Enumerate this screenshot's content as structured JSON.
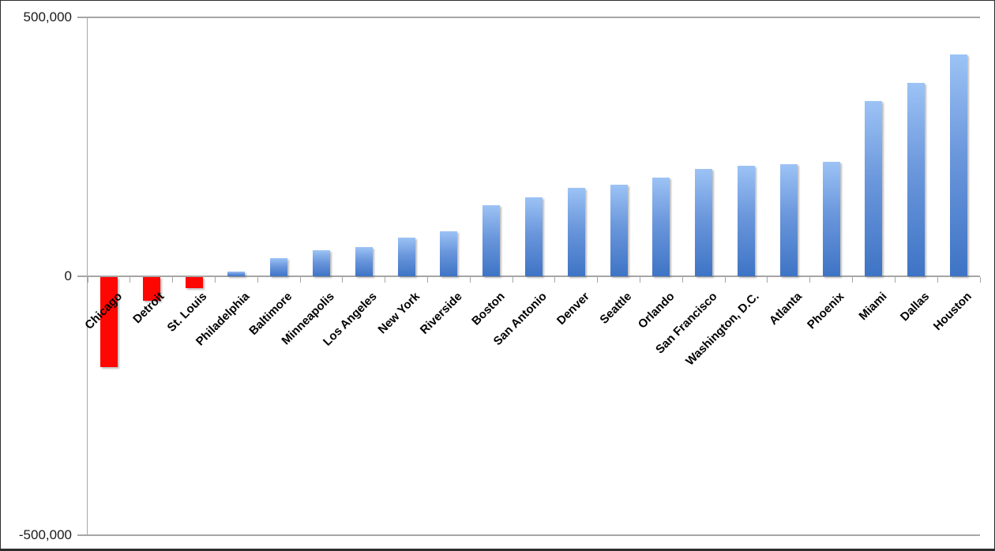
{
  "chart_data": {
    "type": "bar",
    "title": "",
    "xlabel": "",
    "ylabel": "",
    "ylim": [
      -500000,
      500000
    ],
    "y_major_unit": 500000,
    "legend": "none",
    "gridlines": "horizontal at -500,000, 0 and 500,000 only",
    "categories": [
      "Chicago",
      "Detroit",
      "St. Louis",
      "Philadelphia",
      "Baltimore",
      "Minneapolis",
      "Los Angeles",
      "New York",
      "Riverside",
      "Boston",
      "San Antonio",
      "Denver",
      "Seattle",
      "Orlando",
      "San Francisco",
      "Washington, D.C.",
      "Atlanta",
      "Phoenix",
      "Miami",
      "Dallas",
      "Houston"
    ],
    "values": [
      -174000,
      -46000,
      -22000,
      9000,
      35000,
      51000,
      56000,
      74000,
      87000,
      137000,
      152000,
      170000,
      177000,
      190000,
      208000,
      213000,
      216000,
      221000,
      338000,
      373000,
      429000
    ],
    "y_ticks": [
      {
        "label": "500,000",
        "value": 500000
      },
      {
        "label": "0",
        "value": 0
      },
      {
        "label": "-500,000",
        "value": -500000
      }
    ],
    "colors": {
      "positive_bar_top": "#9CC3F5",
      "positive_bar_mid": "#6B97DC",
      "positive_bar_bottom": "#3E74C5",
      "negative_bar": "#FE0602",
      "axis_line": "#A6A6A6",
      "category_label_text": "#000000",
      "tick_label_text": "#1A1A1A",
      "background": "#FFFFFF",
      "frame_border": "#2E2E2E"
    }
  }
}
